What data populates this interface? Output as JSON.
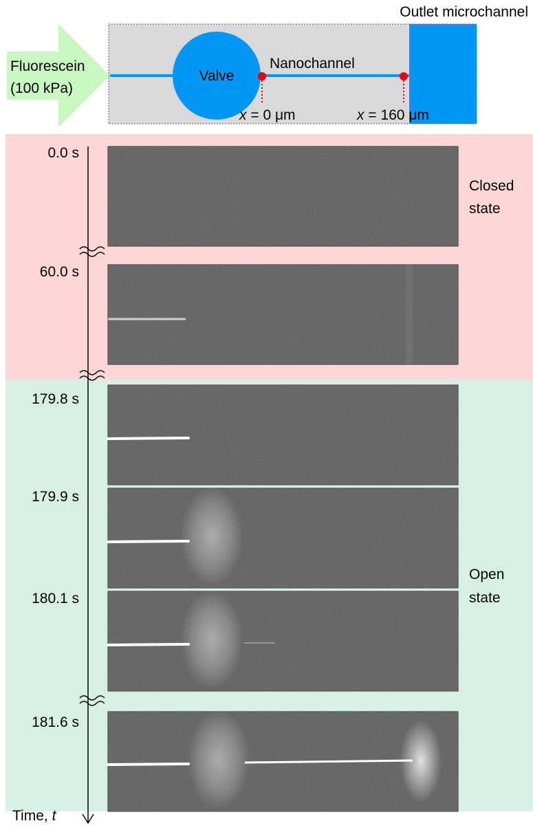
{
  "header": {
    "outlet_label": "Outlet microchannel",
    "inlet_label_lines": [
      "Fluorescein",
      "(100 kPa)"
    ],
    "valve_label": "Valve",
    "nanochannel_label": "Nanochannel",
    "positions": [
      {
        "var": "x",
        "text": "= 0 μm"
      },
      {
        "var": "x",
        "text": "= 160 μm"
      }
    ]
  },
  "frames": [
    {
      "time": "0.0 s"
    },
    {
      "time": "60.0 s"
    },
    {
      "time": "179.8 s"
    },
    {
      "time": "179.9 s"
    },
    {
      "time": "180.1 s"
    },
    {
      "time": "181.6 s"
    }
  ],
  "states": [
    {
      "lines": [
        "Closed",
        "state"
      ]
    },
    {
      "lines": [
        "Open",
        "state"
      ]
    }
  ],
  "time_axis": {
    "text": "Time,",
    "var": "t"
  }
}
